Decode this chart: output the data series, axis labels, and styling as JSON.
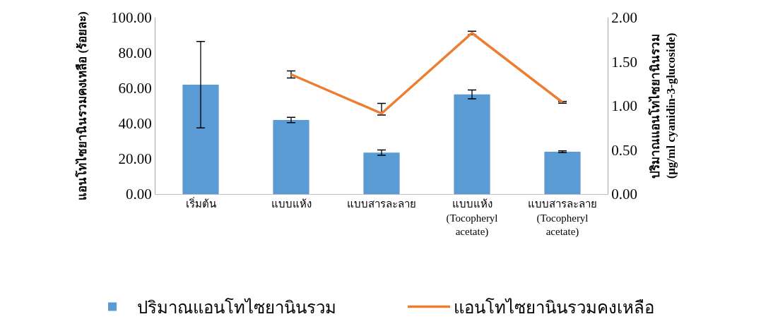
{
  "chart_data": {
    "type": "bar",
    "categories": [
      "เริ่มต้น",
      "แบบแห้ง",
      "แบบสารละลาย",
      "แบบแห้ง\n(Tocopheryl\nacetate)",
      "แบบสารละลาย\n(Tocopheryl\nacetate)"
    ],
    "ylabel": "แอนโทไซยานินรวมคงเหลือ (ร้อยละ)",
    "y2label": "ปริมาณแอนโทไซยานินรวม\n(µg/ml cyanidin-3-glucoside)",
    "series": [
      {
        "name": "ปริมาณแอนโทไซยานินรวม",
        "axis": "y2",
        "color": "#5b9bd5",
        "values": [
          1.24,
          0.84,
          0.47,
          1.13,
          0.48
        ],
        "errors": [
          0.49,
          0.03,
          0.03,
          0.05,
          0.01
        ]
      },
      {
        "name": "แอนโทไซยานินรวมคงเหลือ",
        "type": "line",
        "axis": "y",
        "color": "#ed7d31",
        "values": [
          null,
          67.8,
          45.7,
          91.3,
          52
        ],
        "errors": [
          null,
          2,
          [
            44.8,
            51.4
          ],
          1,
          0.5
        ]
      }
    ],
    "ylim": [
      0,
      100
    ],
    "yticks": [
      {
        "value": 0,
        "label": "0.00"
      },
      {
        "value": 20,
        "label": "20.00"
      },
      {
        "value": 40,
        "label": "40.00"
      },
      {
        "value": 60,
        "label": "60.00"
      },
      {
        "value": 80,
        "label": "80.00"
      },
      {
        "value": 100,
        "label": "100.00"
      }
    ],
    "y2lim": [
      0,
      2
    ],
    "y2ticks": [
      {
        "value": 0,
        "label": "0.00"
      },
      {
        "value": 0.5,
        "label": "0.50"
      },
      {
        "value": 1,
        "label": "1.00"
      },
      {
        "value": 1.5,
        "label": "1.50"
      },
      {
        "value": 2,
        "label": "2.00"
      }
    ],
    "grid": false,
    "legend": "bottom",
    "marker": "none",
    "line_style": "solid"
  }
}
